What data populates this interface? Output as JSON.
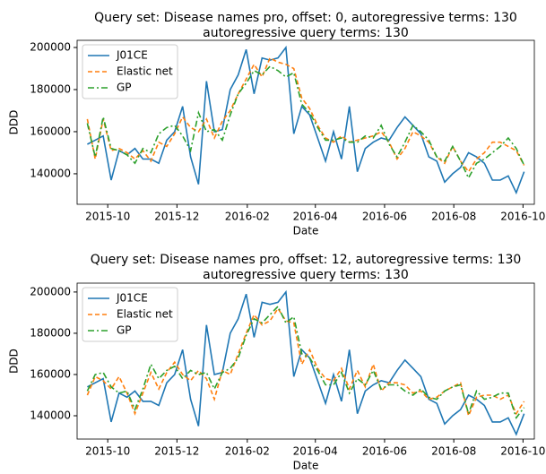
{
  "chart_data": [
    {
      "type": "line",
      "title": "Query set: Disease names pro, offset: 0, autoregressive terms: 130\nautoregressive query terms: 130",
      "x_label": "Date",
      "y_label": "DDD",
      "x": [
        "2015-09-13",
        "2015-09-20",
        "2015-09-27",
        "2015-10-04",
        "2015-10-11",
        "2015-10-18",
        "2015-10-25",
        "2015-11-01",
        "2015-11-08",
        "2015-11-15",
        "2015-11-22",
        "2015-11-29",
        "2015-12-06",
        "2015-12-13",
        "2015-12-20",
        "2015-12-27",
        "2016-01-03",
        "2016-01-10",
        "2016-01-17",
        "2016-01-24",
        "2016-01-31",
        "2016-02-07",
        "2016-02-14",
        "2016-02-21",
        "2016-02-28",
        "2016-03-06",
        "2016-03-13",
        "2016-03-20",
        "2016-03-27",
        "2016-04-03",
        "2016-04-10",
        "2016-04-17",
        "2016-04-24",
        "2016-05-01",
        "2016-05-08",
        "2016-05-15",
        "2016-05-22",
        "2016-05-29",
        "2016-06-05",
        "2016-06-12",
        "2016-06-19",
        "2016-06-26",
        "2016-07-03",
        "2016-07-10",
        "2016-07-17",
        "2016-07-24",
        "2016-07-31",
        "2016-08-07",
        "2016-08-14",
        "2016-08-21",
        "2016-08-28",
        "2016-09-04",
        "2016-09-11",
        "2016-09-18",
        "2016-09-25",
        "2016-10-02"
      ],
      "xlim": [
        "2015-09-04",
        "2016-10-11"
      ],
      "xticks": [
        {
          "value": "2015-10-01",
          "label": "2015-10"
        },
        {
          "value": "2015-12-01",
          "label": "2015-12"
        },
        {
          "value": "2016-02-01",
          "label": "2016-02"
        },
        {
          "value": "2016-04-01",
          "label": "2016-04"
        },
        {
          "value": "2016-06-01",
          "label": "2016-06"
        },
        {
          "value": "2016-08-01",
          "label": "2016-08"
        },
        {
          "value": "2016-10-01",
          "label": "2016-10"
        }
      ],
      "ylim": [
        125500,
        203400
      ],
      "yticks": [
        140000,
        160000,
        180000,
        200000
      ],
      "legend": "upper left",
      "series": [
        {
          "name": "J01CE",
          "color": "#1f77b4",
          "style": "solid",
          "values": [
            154000,
            156000,
            158000,
            137000,
            151000,
            149000,
            152000,
            147000,
            147000,
            145000,
            156000,
            160000,
            172000,
            148000,
            135000,
            184000,
            160000,
            161000,
            180000,
            187000,
            199000,
            178000,
            195000,
            194000,
            195000,
            200000,
            159000,
            172000,
            168000,
            157000,
            146000,
            160000,
            147000,
            172000,
            141000,
            152000,
            155000,
            157000,
            156000,
            162000,
            167000,
            163000,
            159000,
            148000,
            146000,
            136000,
            140000,
            143000,
            150000,
            148000,
            145000,
            137000,
            137000,
            139000,
            131000,
            141000
          ]
        },
        {
          "name": "Elastic net",
          "color": "#ff7f0e",
          "style": "dashed",
          "values": [
            166000,
            147000,
            166000,
            151000,
            152000,
            150000,
            147000,
            151000,
            146000,
            155000,
            153000,
            159000,
            167000,
            162000,
            160000,
            166000,
            157000,
            165000,
            170000,
            178000,
            185000,
            192000,
            186000,
            195000,
            193000,
            192000,
            190000,
            176000,
            171000,
            163000,
            157000,
            155000,
            158000,
            155000,
            156000,
            157000,
            158000,
            160000,
            155000,
            147000,
            152000,
            160000,
            158000,
            155000,
            148000,
            145000,
            153000,
            146000,
            141000,
            147000,
            150000,
            155000,
            155000,
            153000,
            151000,
            144000
          ]
        },
        {
          "name": "GP",
          "color": "#2ca02c",
          "style": "dashdot",
          "values": [
            164000,
            148000,
            167000,
            152000,
            151000,
            149000,
            145000,
            152000,
            150000,
            159000,
            162000,
            163000,
            158000,
            151000,
            169000,
            160000,
            161000,
            156000,
            168000,
            178000,
            183000,
            189000,
            187000,
            191000,
            189000,
            186000,
            188000,
            173000,
            169000,
            162000,
            156000,
            156000,
            157000,
            155000,
            155000,
            158000,
            157000,
            163000,
            154000,
            148000,
            155000,
            163000,
            160000,
            156000,
            148000,
            146000,
            153000,
            146000,
            138000,
            145000,
            147000,
            150000,
            153000,
            157000,
            152000,
            144000
          ]
        }
      ]
    },
    {
      "type": "line",
      "title": "Query set: Disease names pro, offset: 12, autoregressive terms: 130\nautoregressive query terms: 130",
      "x_label": "Date",
      "y_label": "DDD",
      "x": [
        "2015-09-13",
        "2015-09-20",
        "2015-09-27",
        "2015-10-04",
        "2015-10-11",
        "2015-10-18",
        "2015-10-25",
        "2015-11-01",
        "2015-11-08",
        "2015-11-15",
        "2015-11-22",
        "2015-11-29",
        "2015-12-06",
        "2015-12-13",
        "2015-12-20",
        "2015-12-27",
        "2016-01-03",
        "2016-01-10",
        "2016-01-17",
        "2016-01-24",
        "2016-01-31",
        "2016-02-07",
        "2016-02-14",
        "2016-02-21",
        "2016-02-28",
        "2016-03-06",
        "2016-03-13",
        "2016-03-20",
        "2016-03-27",
        "2016-04-03",
        "2016-04-10",
        "2016-04-17",
        "2016-04-24",
        "2016-05-01",
        "2016-05-08",
        "2016-05-15",
        "2016-05-22",
        "2016-05-29",
        "2016-06-05",
        "2016-06-12",
        "2016-06-19",
        "2016-06-26",
        "2016-07-03",
        "2016-07-10",
        "2016-07-17",
        "2016-07-24",
        "2016-07-31",
        "2016-08-07",
        "2016-08-14",
        "2016-08-21",
        "2016-08-28",
        "2016-09-04",
        "2016-09-11",
        "2016-09-18",
        "2016-09-25",
        "2016-10-02"
      ],
      "xlim": [
        "2015-09-04",
        "2016-10-11"
      ],
      "xticks": [
        {
          "value": "2015-10-01",
          "label": "2015-10"
        },
        {
          "value": "2015-12-01",
          "label": "2015-12"
        },
        {
          "value": "2016-02-01",
          "label": "2016-02"
        },
        {
          "value": "2016-04-01",
          "label": "2016-04"
        },
        {
          "value": "2016-06-01",
          "label": "2016-06"
        },
        {
          "value": "2016-08-01",
          "label": "2016-08"
        },
        {
          "value": "2016-10-01",
          "label": "2016-10"
        }
      ],
      "ylim": [
        128700,
        204300
      ],
      "yticks": [
        140000,
        160000,
        180000,
        200000
      ],
      "legend": "upper left",
      "series": [
        {
          "name": "J01CE",
          "color": "#1f77b4",
          "style": "solid",
          "values": [
            154000,
            156000,
            158000,
            137000,
            151000,
            149000,
            152000,
            147000,
            147000,
            145000,
            156000,
            160000,
            172000,
            148000,
            135000,
            184000,
            160000,
            161000,
            180000,
            187000,
            199000,
            178000,
            195000,
            194000,
            195000,
            200000,
            159000,
            172000,
            168000,
            157000,
            146000,
            160000,
            147000,
            172000,
            141000,
            152000,
            155000,
            157000,
            156000,
            162000,
            167000,
            163000,
            159000,
            148000,
            146000,
            136000,
            140000,
            143000,
            150000,
            148000,
            145000,
            137000,
            137000,
            139000,
            131000,
            141000
          ]
        },
        {
          "name": "Elastic net",
          "color": "#ff7f0e",
          "style": "dashed",
          "values": [
            150000,
            159000,
            157000,
            153000,
            159000,
            151000,
            141000,
            151000,
            161000,
            153000,
            161000,
            166000,
            160000,
            157000,
            162000,
            158000,
            148000,
            162000,
            160000,
            170000,
            180000,
            189000,
            184000,
            186000,
            192000,
            186000,
            185000,
            165000,
            172000,
            163000,
            158000,
            157000,
            163000,
            153000,
            162000,
            154000,
            165000,
            152000,
            156000,
            156000,
            155000,
            151000,
            152000,
            148000,
            149000,
            152000,
            154000,
            156000,
            140000,
            149000,
            150000,
            150000,
            148000,
            150000,
            141000,
            147000
          ]
        },
        {
          "name": "GP",
          "color": "#2ca02c",
          "style": "dashdot",
          "values": [
            152000,
            160000,
            161000,
            154000,
            151000,
            152000,
            143000,
            153000,
            165000,
            158000,
            162000,
            164000,
            158000,
            162000,
            160000,
            161000,
            153000,
            161000,
            163000,
            168000,
            179000,
            187000,
            185000,
            189000,
            193000,
            185000,
            188000,
            170000,
            168000,
            162000,
            155000,
            155000,
            161000,
            151000,
            158000,
            155000,
            162000,
            153000,
            155000,
            155000,
            152000,
            150000,
            153000,
            149000,
            148000,
            152000,
            154000,
            155000,
            141000,
            152000,
            148000,
            149000,
            151000,
            151000,
            139000,
            144000
          ]
        }
      ]
    }
  ]
}
